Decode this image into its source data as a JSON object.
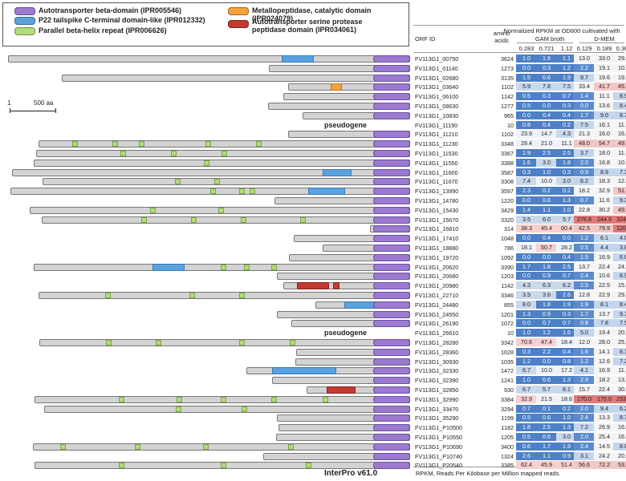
{
  "legend": [
    {
      "label": "Autotransporter beta-domain (IPR005546)",
      "color": "#9b7ad0"
    },
    {
      "label": "P22 tailspike C-terminal domain-like (IPR012332)",
      "color": "#5aa2df"
    },
    {
      "label": "Parallel beta-helix repeat (IPR006626)",
      "color": "#b2dc7a"
    },
    {
      "label": "Metallopeptidase, catalytic domain (IPR024079)",
      "color": "#f2a33c"
    },
    {
      "label": "Autotransporter serine protease peptidase domain (IPR034061)",
      "color": "#c23b32"
    }
  ],
  "scale": {
    "left": "1",
    "right": "500 aa"
  },
  "footer_left": "InterPro v61.0",
  "footer_right": "RPKM, Reads Per Kilobase per Million mapped reads.",
  "header": {
    "top": "Normalized RPKM at OD600 cultivated with",
    "gam": "GAM broth",
    "dmem": "D-MEM",
    "orf": "ORF ID",
    "aa": "amino acids",
    "gam_od": [
      "0.283",
      "0.721",
      "1.12"
    ],
    "dmem_od": [
      "0.129",
      "0.189",
      "0.364"
    ]
  },
  "rows": [
    {
      "id": "FV113G1_00750",
      "aa": "3624",
      "g": [
        "1.0",
        "1.9",
        "1.1"
      ],
      "d": [
        "13.0",
        "33.0",
        "29.8"
      ]
    },
    {
      "id": "FV113G1_01140",
      "aa": "1273",
      "g": [
        "0.0",
        "0.3",
        "1.2"
      ],
      "d": [
        "2.2",
        "19.1",
        "10.3"
      ]
    },
    {
      "id": "FV113G1_02680",
      "aa": "3135",
      "g": [
        "1.5",
        "0.6",
        "1.9"
      ],
      "d": [
        "9.7",
        "19.6",
        "19.5"
      ]
    },
    {
      "id": "FV113G1_03640",
      "aa": "1102",
      "g": [
        "5.9",
        "7.8",
        "7.5"
      ],
      "d": [
        "33.4",
        "41.7",
        "45.2"
      ]
    },
    {
      "id": "FV113G1_06100",
      "aa": "1142",
      "g": [
        "0.5",
        "0.3",
        "0.7"
      ],
      "d": [
        "1.4",
        "11.1",
        "8.9"
      ]
    },
    {
      "id": "FV113G1_08630",
      "aa": "1277",
      "g": [
        "0.5",
        "0.0",
        "0.3"
      ],
      "d": [
        "0.0",
        "13.6",
        "8.4"
      ]
    },
    {
      "id": "FV113G1_10830",
      "aa": "965",
      "g": [
        "0.0",
        "0.4",
        "0.4"
      ],
      "d": [
        "1.7",
        "9.0",
        "8.7"
      ]
    },
    {
      "id": "FV113G1_11190",
      "aa": "10",
      "g": [
        "0.8",
        "0.4",
        "0.2"
      ],
      "d": [
        "7.5",
        "16.1",
        "11.9"
      ]
    },
    {
      "id": "FV113G1_11210",
      "aa": "1102",
      "g": [
        "23.9",
        "14.7",
        "4.3"
      ],
      "d": [
        "21.3",
        "16.0",
        "16.0"
      ]
    },
    {
      "id": "FV113G1_11230",
      "aa": "3348",
      "g": [
        "28.4",
        "21.0",
        "11.1"
      ],
      "d": [
        "48.0",
        "54.7",
        "49.4"
      ]
    },
    {
      "id": "FV113G1_11530",
      "aa": "3367",
      "g": [
        "1.9",
        "2.5",
        "2.5"
      ],
      "d": [
        "3.7",
        "18.0",
        "11.4"
      ]
    },
    {
      "id": "FV113G1_11550",
      "aa": "3388",
      "g": [
        "1.6",
        "3.0",
        "1.8"
      ],
      "d": [
        "2.0",
        "16.8",
        "10.6"
      ]
    },
    {
      "id": "FV113G1_11600",
      "aa": "3587",
      "g": [
        "0.3",
        "1.0",
        "0.3"
      ],
      "d": [
        "0.9",
        "8.9",
        "7.3"
      ]
    },
    {
      "id": "FV113G1_11670",
      "aa": "3308",
      "g": [
        "7.4",
        "10.0",
        "3.0"
      ],
      "d": [
        "6.2",
        "18.3",
        "12.9"
      ]
    },
    {
      "id": "FV113G1_13990",
      "aa": "3597",
      "g": [
        "2.3",
        "0.2",
        "0.2"
      ],
      "d": [
        "18.2",
        "32.9",
        "51.6"
      ]
    },
    {
      "id": "FV113G1_14780",
      "aa": "1220",
      "g": [
        "0.0",
        "0.6",
        "1.3"
      ],
      "d": [
        "0.7",
        "11.6",
        "9.3"
      ]
    },
    {
      "id": "FV113G1_15430",
      "aa": "3429",
      "g": [
        "1.4",
        "1.1",
        "1.0"
      ],
      "d": [
        "22.8",
        "30.2",
        "49.0"
      ]
    },
    {
      "id": "FV113G1_15670",
      "aa": "3320",
      "g": [
        "3.5",
        "6.0",
        "5.7"
      ],
      "d": [
        "276.8",
        "244.9",
        "324.8"
      ]
    },
    {
      "id": "FV113G1_16810",
      "aa": "314",
      "g": [
        "38.3",
        "45.4",
        "60.4"
      ],
      "d": [
        "42.5",
        "79.9",
        "120.5"
      ]
    },
    {
      "id": "FV113G1_17410",
      "aa": "1048",
      "g": [
        "0.0",
        "0.4",
        "0.0"
      ],
      "d": [
        "1.2",
        "6.1",
        "4.0"
      ]
    },
    {
      "id": "FV113G1_18880",
      "aa": "786",
      "g": [
        "18.1",
        "50.7",
        "28.2"
      ],
      "d": [
        "0.5",
        "4.4",
        "3.8"
      ]
    },
    {
      "id": "FV113G1_19720",
      "aa": "1092",
      "g": [
        "0.0",
        "0.0",
        "0.4"
      ],
      "d": [
        "1.5",
        "16.9",
        "6.0"
      ]
    },
    {
      "id": "FV113G1_20620",
      "aa": "3390",
      "g": [
        "1.7",
        "1.8",
        "2.5"
      ],
      "d": [
        "13.7",
        "22.4",
        "24.0"
      ]
    },
    {
      "id": "FV113G1_20680",
      "aa": "1203",
      "g": [
        "0.0",
        "0.9",
        "0.7"
      ],
      "d": [
        "2.4",
        "10.6",
        "8.9"
      ]
    },
    {
      "id": "FV113G1_20980",
      "aa": "1142",
      "g": [
        "4.3",
        "6.3",
        "6.2"
      ],
      "d": [
        "2.5",
        "22.5",
        "15.9"
      ]
    },
    {
      "id": "FV113G1_22710",
      "aa": "3346",
      "g": [
        "3.5",
        "3.6",
        "2.6"
      ],
      "d": [
        "12.8",
        "22.9",
        "29.9"
      ]
    },
    {
      "id": "FV113G1_24480",
      "aa": "855",
      "g": [
        "8.0",
        "1.8",
        "1.9"
      ],
      "d": [
        "1.9",
        "8.1",
        "8.4"
      ]
    },
    {
      "id": "FV113G1_24550",
      "aa": "1201",
      "g": [
        "1.3",
        "0.9",
        "0.3"
      ],
      "d": [
        "1.7",
        "13.7",
        "9.7"
      ]
    },
    {
      "id": "FV113G1_26190",
      "aa": "1072",
      "g": [
        "0.0",
        "0.7",
        "0.7"
      ],
      "d": [
        "0.8",
        "7.8",
        "7.5"
      ]
    },
    {
      "id": "FV113G1_26610",
      "aa": "10",
      "g": [
        "1.0",
        "1.2",
        "1.6"
      ],
      "d": [
        "5.0",
        "19.4",
        "20.8"
      ]
    },
    {
      "id": "FV113G1_28280",
      "aa": "3342",
      "g": [
        "70.6",
        "47.4",
        "18.4"
      ],
      "d": [
        "12.0",
        "28.0",
        "25.8"
      ]
    },
    {
      "id": "FV113G1_28360",
      "aa": "1028",
      "g": [
        "0.3",
        "2.2",
        "0.4"
      ],
      "d": [
        "1.6",
        "14.1",
        "8.1"
      ]
    },
    {
      "id": "FV113G1_30930",
      "aa": "1035",
      "g": [
        "1.2",
        "0.0",
        "0.8"
      ],
      "d": [
        "1.2",
        "12.6",
        "7.2"
      ]
    },
    {
      "id": "FV113G1_32330",
      "aa": "1472",
      "g": [
        "6.7",
        "10.0",
        "17.2"
      ],
      "d": [
        "4.1",
        "16.9",
        "11.8"
      ]
    },
    {
      "id": "FV113G1_32390",
      "aa": "1241",
      "g": [
        "1.0",
        "0.6",
        "1.3"
      ],
      "d": [
        "2.9",
        "18.2",
        "13.5"
      ]
    },
    {
      "id": "FV113G1_32850",
      "aa": "930",
      "g": [
        "6.7",
        "5.7",
        "8.1"
      ],
      "d": [
        "15.7",
        "22.4",
        "30.2"
      ]
    },
    {
      "id": "FV113G1_32990",
      "aa": "3384",
      "g": [
        "32.9",
        "21.5",
        "18.6"
      ],
      "d": [
        "170.0",
        "175.0",
        "253.9"
      ]
    },
    {
      "id": "FV113G1_33470",
      "aa": "3294",
      "g": [
        "0.7",
        "0.1",
        "0.2"
      ],
      "d": [
        "2.0",
        "9.4",
        "6.2"
      ]
    },
    {
      "id": "FV113G1_35290",
      "aa": "1199",
      "g": [
        "0.5",
        "0.6",
        "1.0"
      ],
      "d": [
        "2.4",
        "13.3",
        "8.7"
      ]
    },
    {
      "id": "FV113G1_P10500",
      "aa": "1182",
      "g": [
        "1.8",
        "2.5",
        "1.3"
      ],
      "d": [
        "7.2",
        "26.9",
        "16.2"
      ]
    },
    {
      "id": "FV113G1_P10550",
      "aa": "1205",
      "g": [
        "0.5",
        "0.6",
        "3.0"
      ],
      "d": [
        "2.0",
        "25.4",
        "16.1"
      ]
    },
    {
      "id": "FV113G1_P10690",
      "aa": "3400",
      "g": [
        "0.6",
        "1.7",
        "1.9"
      ],
      "d": [
        "2.4",
        "14.5",
        "8.8"
      ]
    },
    {
      "id": "FV113G1_P10740",
      "aa": "1324",
      "g": [
        "2.6",
        "1.1",
        "0.9"
      ],
      "d": [
        "3.1",
        "24.2",
        "20.5"
      ]
    },
    {
      "id": "FV113G1_P20540",
      "aa": "3385",
      "g": [
        "62.4",
        "45.9",
        "51.4"
      ],
      "d": [
        "56.6",
        "72.2",
        "53.7"
      ]
    }
  ],
  "pseudogene_label": "pseudogene"
}
